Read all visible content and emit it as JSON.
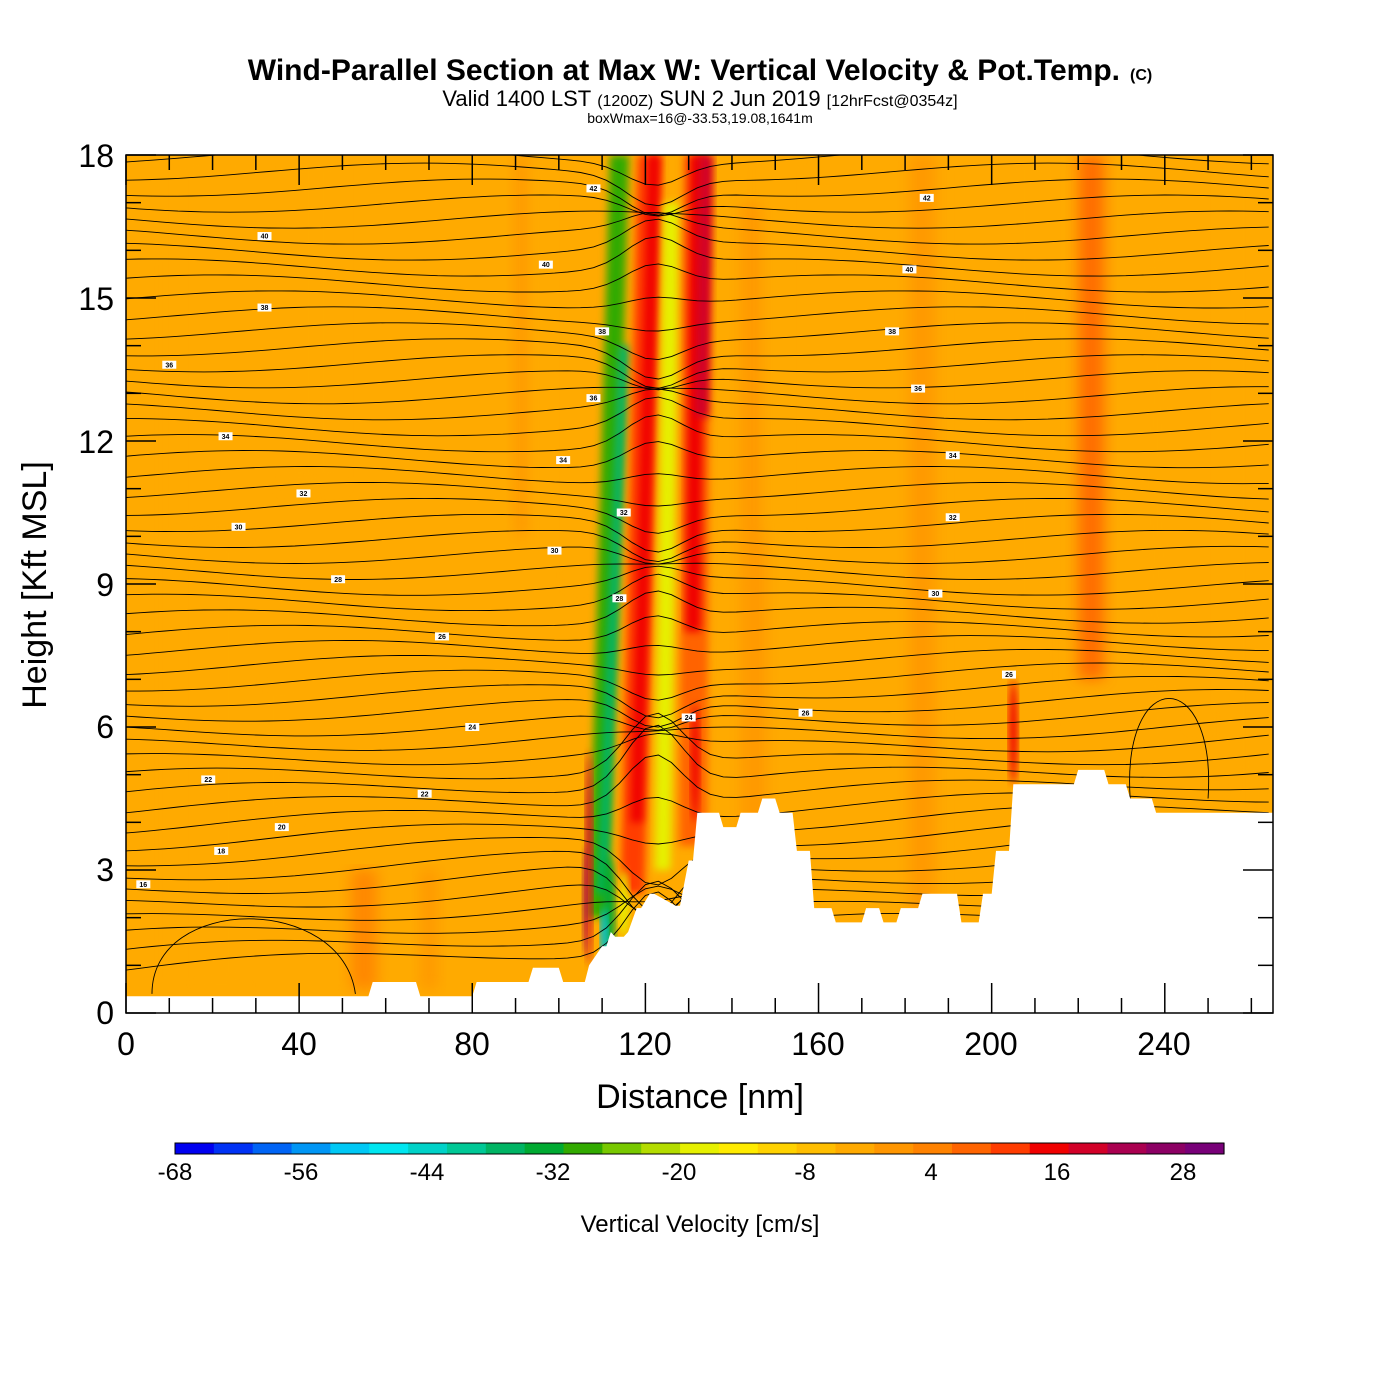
{
  "chart_data": {
    "type": "heatmap",
    "title": "Wind-Parallel Section at Max W: Vertical Velocity & Pot.Temp.",
    "title_mark": "(C)",
    "subtitle_main_a": "Valid 1400 LST",
    "subtitle_small_a": "(1200Z)",
    "subtitle_main_b": "SUN 2 Jun 2019",
    "subtitle_small_b": "[12hrFcst@0354z]",
    "subtitle2": "boxWmax=16@-33.53,19.08,1641m",
    "xlabel": "Distance [nm]",
    "ylabel": "Height [Kft MSL]",
    "xlim": [
      0,
      265
    ],
    "ylim": [
      0,
      18
    ],
    "x_ticks": [
      "0",
      "40",
      "80",
      "120",
      "160",
      "200",
      "240"
    ],
    "y_ticks": [
      "0",
      "3",
      "6",
      "9",
      "12",
      "15",
      "18"
    ],
    "colorbar": {
      "label": "Vertical Velocity [cm/s]",
      "min": -70,
      "max": 32,
      "step": 4,
      "tick_labels": [
        "-68",
        "-56",
        "-44",
        "-32",
        "-20",
        "-8",
        "4",
        "16",
        "28"
      ],
      "colors": [
        "#0000f0",
        "#0032f5",
        "#0064f5",
        "#0096f5",
        "#00c8f5",
        "#00e6f0",
        "#00d2c8",
        "#00c896",
        "#00b464",
        "#00aa32",
        "#32aa00",
        "#78c800",
        "#b4dc00",
        "#e6f000",
        "#ffeb00",
        "#ffd200",
        "#ffbe00",
        "#ffaa00",
        "#ff9600",
        "#ff8200",
        "#ff6400",
        "#ff3c00",
        "#f00000",
        "#d20028",
        "#aa0050",
        "#8c0064",
        "#780078"
      ]
    },
    "terrain_kft": {
      "x": [
        0,
        56,
        57,
        67,
        68,
        80,
        81,
        93,
        94,
        100,
        101,
        106,
        107,
        110,
        111,
        112,
        113,
        115,
        116,
        118,
        119,
        121,
        122,
        127,
        128,
        130,
        131,
        132,
        133,
        137,
        138,
        141,
        142,
        146,
        147,
        150,
        151,
        154,
        155,
        158,
        159,
        163,
        164,
        170,
        171,
        174,
        175,
        178,
        179,
        183,
        184,
        192,
        193,
        197,
        198,
        200,
        201,
        204,
        205,
        219,
        220,
        226,
        227,
        231,
        232,
        237,
        238,
        265
      ],
      "top": [
        0.35,
        0.35,
        0.65,
        0.65,
        0.35,
        0.35,
        0.65,
        0.65,
        0.95,
        0.95,
        0.65,
        0.65,
        1.0,
        1.4,
        1.4,
        1.7,
        1.6,
        1.6,
        1.7,
        2.2,
        2.2,
        2.5,
        2.5,
        2.25,
        2.25,
        3.2,
        3.2,
        4.2,
        4.2,
        4.2,
        3.9,
        3.9,
        4.2,
        4.2,
        4.5,
        4.5,
        4.2,
        4.2,
        3.4,
        3.4,
        2.2,
        2.2,
        1.9,
        1.9,
        2.2,
        2.2,
        1.9,
        1.9,
        2.2,
        2.2,
        2.5,
        2.5,
        1.9,
        1.9,
        2.5,
        2.5,
        3.4,
        3.4,
        4.8,
        4.8,
        5.1,
        5.1,
        4.8,
        4.8,
        4.5,
        4.5,
        4.2,
        4.2
      ]
    },
    "updraft_max_cm_s": 16,
    "contour_labels": [
      {
        "text": "42",
        "x": 108,
        "y": 17.3
      },
      {
        "text": "42",
        "x": 185,
        "y": 17.1
      },
      {
        "text": "40",
        "x": 32,
        "y": 16.3
      },
      {
        "text": "40",
        "x": 97,
        "y": 15.7
      },
      {
        "text": "40",
        "x": 181,
        "y": 15.6
      },
      {
        "text": "38",
        "x": 32,
        "y": 14.8
      },
      {
        "text": "38",
        "x": 110,
        "y": 14.3
      },
      {
        "text": "38",
        "x": 177,
        "y": 14.3
      },
      {
        "text": "36",
        "x": 10,
        "y": 13.6
      },
      {
        "text": "36",
        "x": 108,
        "y": 12.9
      },
      {
        "text": "36",
        "x": 183,
        "y": 13.1
      },
      {
        "text": "34",
        "x": 23,
        "y": 12.1
      },
      {
        "text": "34",
        "x": 101,
        "y": 11.6
      },
      {
        "text": "34",
        "x": 191,
        "y": 11.7
      },
      {
        "text": "32",
        "x": 41,
        "y": 10.9
      },
      {
        "text": "32",
        "x": 115,
        "y": 10.5
      },
      {
        "text": "32",
        "x": 191,
        "y": 10.4
      },
      {
        "text": "30",
        "x": 26,
        "y": 10.2
      },
      {
        "text": "30",
        "x": 99,
        "y": 9.7
      },
      {
        "text": "30",
        "x": 187,
        "y": 8.8
      },
      {
        "text": "28",
        "x": 49,
        "y": 9.1
      },
      {
        "text": "28",
        "x": 114,
        "y": 8.7
      },
      {
        "text": "26",
        "x": 73,
        "y": 7.9
      },
      {
        "text": "26",
        "x": 204,
        "y": 7.1
      },
      {
        "text": "26",
        "x": 157,
        "y": 6.3
      },
      {
        "text": "24",
        "x": 80,
        "y": 6.0
      },
      {
        "text": "24",
        "x": 130,
        "y": 6.2
      },
      {
        "text": "22",
        "x": 19,
        "y": 4.9
      },
      {
        "text": "22",
        "x": 69,
        "y": 4.6
      },
      {
        "text": "20",
        "x": 36,
        "y": 3.9
      },
      {
        "text": "18",
        "x": 22,
        "y": 3.4
      },
      {
        "text": "16",
        "x": 4,
        "y": 2.7
      }
    ]
  }
}
